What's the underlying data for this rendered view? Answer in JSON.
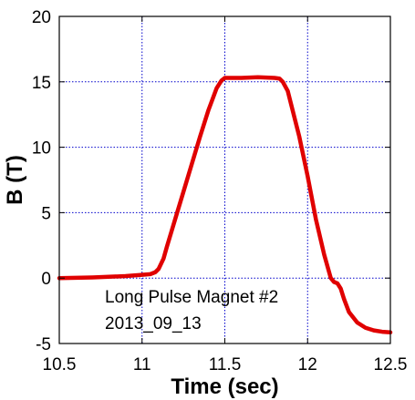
{
  "chart_data": {
    "type": "line",
    "xlabel": "Time (sec)",
    "ylabel": "B (T)",
    "xlim": [
      10.5,
      12.5
    ],
    "ylim": [
      -5,
      20
    ],
    "xticks": [
      10.5,
      11,
      11.5,
      12,
      12.5
    ],
    "xtick_labels": [
      "10.5",
      "11",
      "11.5",
      "12",
      "12.5"
    ],
    "yticks": [
      -5,
      0,
      5,
      10,
      15,
      20
    ],
    "ytick_labels": [
      "-5",
      "0",
      "5",
      "10",
      "15",
      "20"
    ],
    "grid": true,
    "annotations": [
      "Long Pulse Magnet #2",
      "2013_09_13"
    ],
    "colors": {
      "line": "#e00000",
      "grid": "#0000cc",
      "axes": "#000000"
    },
    "series": [
      {
        "x": [
          10.5,
          10.7,
          10.9,
          11.0,
          11.05,
          11.08,
          11.1,
          11.13,
          11.15,
          11.2,
          11.25,
          11.3,
          11.35,
          11.4,
          11.45,
          11.48,
          11.5,
          11.6,
          11.7,
          11.8,
          11.83,
          11.85,
          11.88,
          11.9,
          11.95,
          12.0,
          12.05,
          12.1,
          12.14,
          12.16,
          12.18,
          12.2,
          12.22,
          12.25,
          12.3,
          12.35,
          12.4,
          12.45,
          12.5
        ],
        "y": [
          0.0,
          0.05,
          0.15,
          0.25,
          0.3,
          0.45,
          0.7,
          1.5,
          2.4,
          4.5,
          6.6,
          8.7,
          10.8,
          12.8,
          14.5,
          15.1,
          15.3,
          15.3,
          15.35,
          15.3,
          15.25,
          15.0,
          14.3,
          13.3,
          10.8,
          7.8,
          4.5,
          1.8,
          0.0,
          -0.3,
          -0.4,
          -0.8,
          -1.6,
          -2.6,
          -3.4,
          -3.8,
          -4.0,
          -4.1,
          -4.15
        ]
      }
    ]
  }
}
